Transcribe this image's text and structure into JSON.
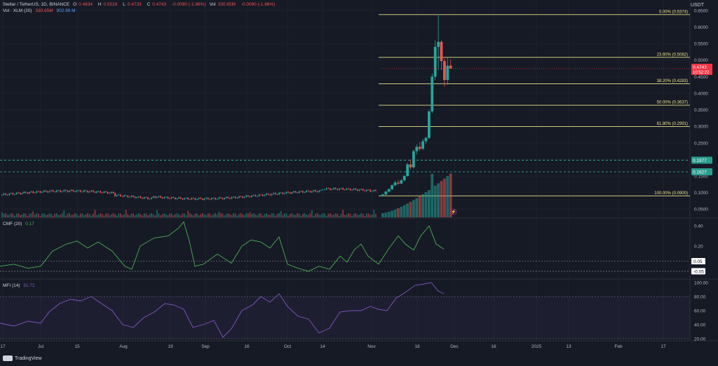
{
  "header": {
    "symbol": "Stellar / TetherUS, 1D, BINANCE",
    "ohlc": [
      {
        "label": "O",
        "value": "0.4834"
      },
      {
        "label": "H",
        "value": "0.5018"
      },
      {
        "label": "L",
        "value": "0.4733"
      },
      {
        "label": "C",
        "value": "0.4743"
      }
    ],
    "change": "-0.0090 (-1.86%)",
    "vol_label": "Vol",
    "vol_value": "330.65M",
    "vol_change": "-0.0090 (-1.86%)",
    "vol_xlm_label": "Vol · XLM (20)",
    "vol_xlm_a": "330.65M",
    "vol_xlm_b": "902.96 M",
    "currency": "USDT"
  },
  "cmf_legend": {
    "label": "CMF (20)",
    "value": "0.17"
  },
  "mfi_legend": {
    "label": "MFI (14)",
    "value": "81.72"
  },
  "attribution": "TradingView",
  "colors": {
    "background": "#161a25",
    "up": "#26a69a",
    "down": "#ef5350",
    "fib": "#e8e08a",
    "support": "#2fbfad",
    "cmf": "#4caf50",
    "mfi": "#7e57c2",
    "price_badge": "#f23645"
  },
  "chart_data": [
    {
      "type": "candlestick",
      "title": "Stellar / TetherUS, 1D, BINANCE",
      "y_axis_ticks": [
        "0.6500",
        "0.6000",
        "0.5500",
        "0.5000",
        "0.4500",
        "0.4000",
        "0.3500",
        "0.3000",
        "0.2500",
        "0.2000",
        "0.1500",
        "0.1000",
        "0.0500"
      ],
      "y_tick_values": [
        0.65,
        0.6,
        0.55,
        0.5,
        0.45,
        0.4,
        0.35,
        0.3,
        0.25,
        0.2,
        0.15,
        0.1,
        0.05
      ],
      "ylim": [
        0.025,
        0.673
      ],
      "x_axis_ticks": [
        "17",
        "Jul",
        "15",
        "Aug",
        "19",
        "Sep",
        "16",
        "Oct",
        "14",
        "Nov",
        "18",
        "Dec",
        "16",
        "2025",
        "13",
        "Feb",
        "17"
      ],
      "last_price": {
        "value": "0.4743",
        "countdown": "10:52:22"
      },
      "fib_levels": [
        {
          "label": "0.00% (0.6374)",
          "value": 0.6374
        },
        {
          "label": "23.60% (0.5082)",
          "value": 0.5082
        },
        {
          "label": "38.20% (0.4283)",
          "value": 0.4283
        },
        {
          "label": "50.00% (0.3637)",
          "value": 0.3637
        },
        {
          "label": "61.80% (0.2991)",
          "value": 0.2991
        },
        {
          "label": "100.00% (0.0900)",
          "value": 0.09
        }
      ],
      "support_levels": [
        {
          "label": "0.1977",
          "value": 0.1977
        },
        {
          "label": "0.1627",
          "value": 0.1627
        }
      ],
      "candles_recent": [
        {
          "o": 0.09,
          "h": 0.096,
          "l": 0.088,
          "c": 0.094
        },
        {
          "o": 0.094,
          "h": 0.105,
          "l": 0.092,
          "c": 0.103
        },
        {
          "o": 0.103,
          "h": 0.112,
          "l": 0.1,
          "c": 0.11
        },
        {
          "o": 0.11,
          "h": 0.125,
          "l": 0.107,
          "c": 0.122
        },
        {
          "o": 0.122,
          "h": 0.136,
          "l": 0.118,
          "c": 0.13
        },
        {
          "o": 0.13,
          "h": 0.138,
          "l": 0.123,
          "c": 0.127
        },
        {
          "o": 0.127,
          "h": 0.14,
          "l": 0.125,
          "c": 0.137
        },
        {
          "o": 0.137,
          "h": 0.153,
          "l": 0.133,
          "c": 0.15
        },
        {
          "o": 0.15,
          "h": 0.19,
          "l": 0.147,
          "c": 0.185
        },
        {
          "o": 0.185,
          "h": 0.2,
          "l": 0.17,
          "c": 0.176
        },
        {
          "o": 0.176,
          "h": 0.23,
          "l": 0.172,
          "c": 0.225
        },
        {
          "o": 0.225,
          "h": 0.245,
          "l": 0.215,
          "c": 0.238
        },
        {
          "o": 0.238,
          "h": 0.252,
          "l": 0.226,
          "c": 0.232
        },
        {
          "o": 0.232,
          "h": 0.262,
          "l": 0.228,
          "c": 0.255
        },
        {
          "o": 0.255,
          "h": 0.268,
          "l": 0.247,
          "c": 0.265
        },
        {
          "o": 0.265,
          "h": 0.35,
          "l": 0.262,
          "c": 0.345
        },
        {
          "o": 0.345,
          "h": 0.46,
          "l": 0.34,
          "c": 0.45
        },
        {
          "o": 0.45,
          "h": 0.56,
          "l": 0.44,
          "c": 0.54
        },
        {
          "o": 0.54,
          "h": 0.6374,
          "l": 0.47,
          "c": 0.555
        },
        {
          "o": 0.555,
          "h": 0.56,
          "l": 0.47,
          "c": 0.497
        },
        {
          "o": 0.497,
          "h": 0.505,
          "l": 0.42,
          "c": 0.44
        },
        {
          "o": 0.44,
          "h": 0.51,
          "l": 0.425,
          "c": 0.483
        },
        {
          "o": 0.4834,
          "h": 0.5018,
          "l": 0.4733,
          "c": 0.4743
        }
      ]
    },
    {
      "type": "line",
      "title": "CMF (20)",
      "last_value": 0.17,
      "y_axis_ticks": [
        "0.40",
        "0.20",
        "0.05",
        "-0.05"
      ],
      "y_tick_values": [
        0.4,
        0.2,
        0.05,
        -0.05
      ],
      "ylim": [
        -0.12,
        0.47
      ],
      "reference_lines": [
        0.05,
        -0.05
      ]
    },
    {
      "type": "line",
      "title": "MFI (14)",
      "last_value": 81.72,
      "y_axis_ticks": [
        "100.00",
        "80.00",
        "60.00",
        "40.00",
        "20.00"
      ],
      "y_tick_values": [
        100,
        80,
        60,
        40,
        20
      ],
      "ylim": [
        18,
        104
      ],
      "bands": [
        20,
        80
      ]
    }
  ]
}
